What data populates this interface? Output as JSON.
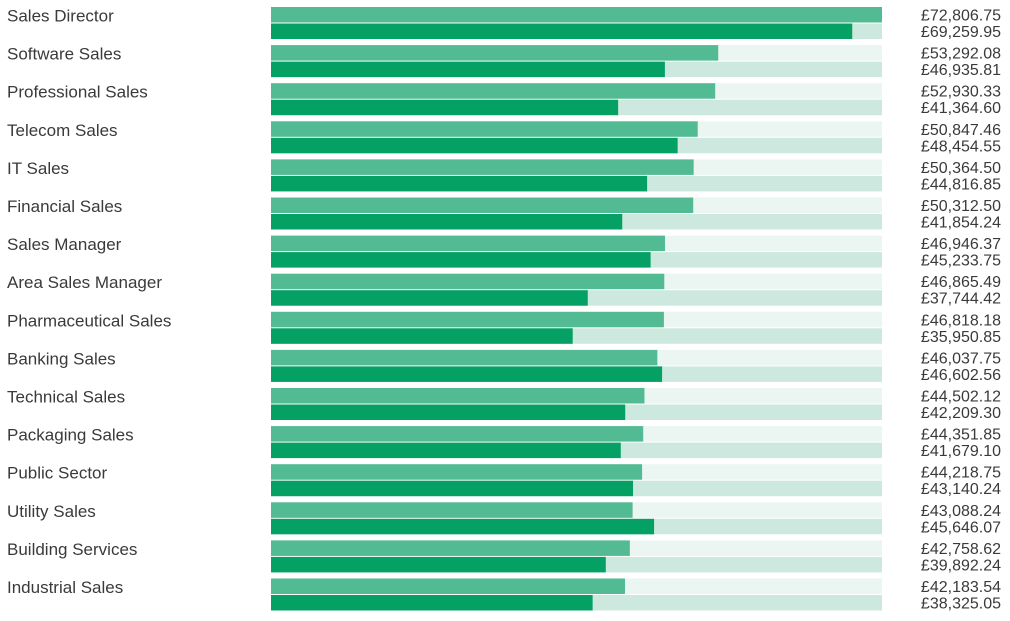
{
  "colors": {
    "track_upper": "#ebf6f2",
    "track_lower": "#cde9df",
    "bar_upper": "#52bb93",
    "bar_lower": "#04a064",
    "text": "#3a3a3a"
  },
  "chart_data": {
    "type": "bar",
    "orientation": "horizontal",
    "title": "",
    "xlabel": "",
    "ylabel": "",
    "xlim": [
      0,
      72806.75
    ],
    "grid": false,
    "legend": "none",
    "currency_symbol": "£",
    "categories": [
      "Sales Director",
      "Software Sales",
      "Professional Sales",
      "Telecom Sales",
      "IT Sales",
      "Financial Sales",
      "Sales Manager",
      "Area Sales Manager",
      "Pharmaceutical Sales",
      "Banking Sales",
      "Technical Sales",
      "Packaging Sales",
      "Public Sector",
      "Utility Sales",
      "Building Services",
      "Industrial Sales"
    ],
    "series": [
      {
        "values": [
          72806.75,
          53292.08,
          52930.33,
          50847.46,
          50364.5,
          50312.5,
          46946.37,
          46865.49,
          46818.18,
          46037.75,
          44502.12,
          44351.85,
          44218.75,
          43088.24,
          42758.62,
          42183.54
        ],
        "labels": [
          "£72,806.75",
          "£53,292.08",
          "£52,930.33",
          "£50,847.46",
          "£50,364.50",
          "£50,312.50",
          "£46,946.37",
          "£46,865.49",
          "£46,818.18",
          "£46,037.75",
          "£44,502.12",
          "£44,351.85",
          "£44,218.75",
          "£43,088.24",
          "£42,758.62",
          "£42,183.54"
        ]
      },
      {
        "values": [
          69259.95,
          46935.81,
          41364.6,
          48454.55,
          44816.85,
          41854.24,
          45233.75,
          37744.42,
          35950.85,
          46602.56,
          42209.3,
          41679.1,
          43140.24,
          45646.07,
          39892.24,
          38325.05
        ],
        "labels": [
          "£69,259.95",
          "£46,935.81",
          "£41,364.60",
          "£48,454.55",
          "£44,816.85",
          "£41,854.24",
          "£45,233.75",
          "£37,744.42",
          "£35,950.85",
          "£46,602.56",
          "£42,209.30",
          "£41,679.10",
          "£43,140.24",
          "£45,646.07",
          "£39,892.24",
          "£38,325.05"
        ]
      }
    ]
  }
}
